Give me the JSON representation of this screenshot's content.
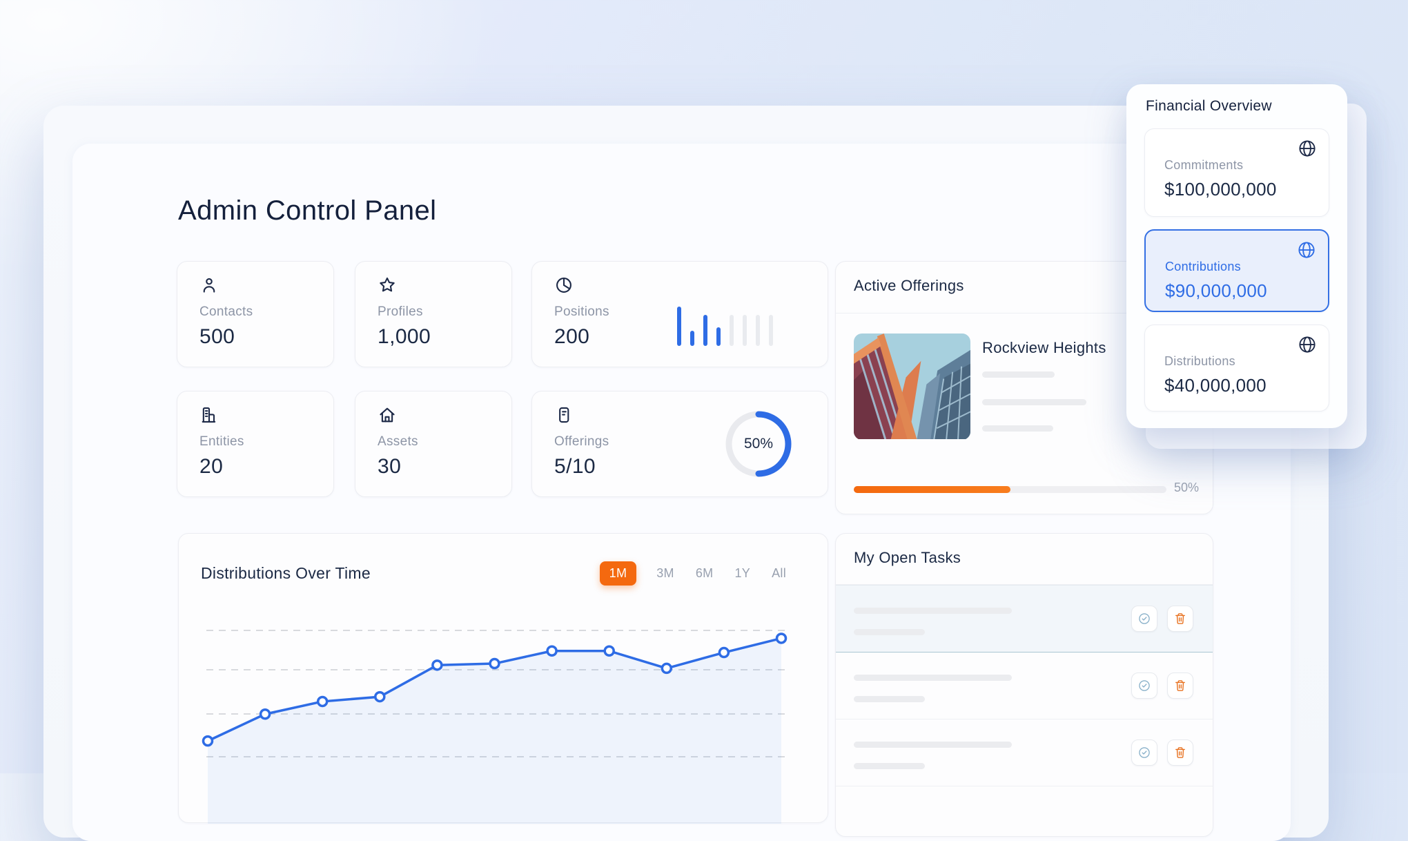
{
  "page": {
    "title": "Admin Control Panel"
  },
  "stats": [
    {
      "label": "Contacts",
      "value": "500",
      "icon": "person-icon"
    },
    {
      "label": "Profiles",
      "value": "1,000",
      "icon": "star-icon"
    },
    {
      "label": "Positions",
      "value": "200",
      "icon": "pie-chart-icon",
      "sparkline": {
        "bar_values": [
          57,
          22,
          45,
          27,
          45,
          45,
          45,
          45
        ],
        "highlight_count": 4,
        "bar_color": "#2e6ce5",
        "muted_color": "#e9ebef"
      }
    },
    {
      "label": "Entities",
      "value": "20",
      "icon": "building-icon"
    },
    {
      "label": "Assets",
      "value": "30",
      "icon": "home-icon"
    },
    {
      "label": "Offerings",
      "value": "5/10",
      "icon": "note-icon",
      "donut": {
        "percent": 50,
        "label": "50%",
        "color": "#2e6ce5",
        "track_color": "#e9eaee"
      }
    }
  ],
  "active_offerings": {
    "title": "Active Offerings",
    "offering": {
      "name": "Rockview Heights",
      "progress_percent": 50,
      "progress_label": "50%",
      "thumbnail": "building-illustration"
    }
  },
  "financial_overview": {
    "title": "Financial Overview",
    "items": [
      {
        "label": "Commitments",
        "value": "$100,000,000",
        "selected": false,
        "icon": "globe-icon"
      },
      {
        "label": "Contributions",
        "value": "$90,000,000",
        "selected": true,
        "icon": "globe-icon"
      },
      {
        "label": "Distributions",
        "value": "$40,000,000",
        "selected": false,
        "icon": "globe-icon"
      }
    ]
  },
  "distributions": {
    "title": "Distributions Over Time",
    "ranges": [
      {
        "label": "1M",
        "active": true
      },
      {
        "label": "3M",
        "active": false
      },
      {
        "label": "6M",
        "active": false
      },
      {
        "label": "1Y",
        "active": false
      },
      {
        "label": "All",
        "active": false
      }
    ],
    "chart_data": {
      "type": "line",
      "x": [
        1,
        2,
        3,
        4,
        5,
        6,
        7,
        8,
        9,
        10,
        11
      ],
      "values": [
        20,
        37,
        45,
        48,
        68,
        69,
        77,
        77,
        66,
        76,
        85
      ],
      "title": "Distributions Over Time",
      "xlabel": "",
      "ylabel": "",
      "ylim": [
        0,
        100
      ],
      "grid": "horizontal-dashed-4-lines",
      "legend": "none",
      "line_color": "#2e6ce5",
      "marker": "hollow-circle",
      "area_fill": true
    }
  },
  "tasks": {
    "title": "My Open Tasks",
    "rows": [
      {
        "highlighted": true,
        "actions": [
          "check-circle-icon",
          "trash-icon"
        ]
      },
      {
        "highlighted": false,
        "actions": [
          "check-circle-icon",
          "trash-icon"
        ]
      },
      {
        "highlighted": false,
        "actions": [
          "check-circle-icon",
          "trash-icon"
        ]
      }
    ]
  },
  "colors": {
    "accent_blue": "#2e6ce5",
    "accent_orange": "#f4690f",
    "navy_text": "#1b2944",
    "muted_text": "#8d95a6",
    "page_bg": "#dde7f7",
    "task_highlight_border": "#a9c6d2"
  }
}
